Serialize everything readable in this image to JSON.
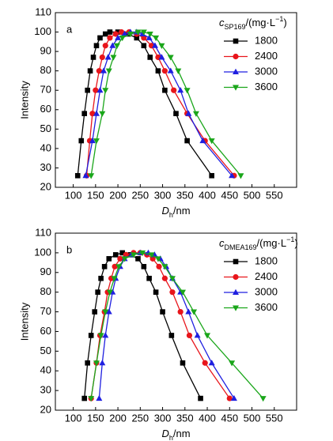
{
  "chart_data": [
    {
      "type": "line",
      "panel_label": "a",
      "y_label": "Intensity",
      "x_label": {
        "symbol": "D",
        "subscript": "h",
        "unit": "/nm"
      },
      "legend_title": {
        "symbol": "c",
        "subscript": "SP169",
        "unit": "/(mg·L",
        "superscript": "−1",
        "close": ")"
      },
      "xlim": [
        60,
        600
      ],
      "xticks": [
        100,
        150,
        200,
        250,
        300,
        350,
        400,
        450,
        500,
        550
      ],
      "ylim": [
        20,
        110
      ],
      "yticks": [
        20,
        30,
        40,
        50,
        60,
        70,
        80,
        90,
        100,
        110
      ],
      "series": [
        {
          "name": "1800",
          "color": "#000000",
          "marker": "square",
          "x": [
            110,
            118,
            125,
            132,
            138,
            145,
            152,
            160,
            172,
            182,
            200,
            222,
            242,
            258,
            272,
            290,
            305,
            330,
            355,
            410
          ],
          "values": [
            26,
            44,
            58,
            70,
            80,
            87,
            93,
            97,
            99,
            100,
            100,
            99,
            97,
            93,
            87,
            80,
            70,
            58,
            44,
            26
          ]
        },
        {
          "name": "2400",
          "color": "#e8151b",
          "marker": "circle",
          "x": [
            130,
            137,
            143,
            150,
            158,
            165,
            172,
            182,
            195,
            208,
            225,
            242,
            258,
            275,
            290,
            305,
            325,
            355,
            395,
            460
          ],
          "values": [
            26,
            44,
            58,
            70,
            80,
            87,
            93,
            97,
            99,
            100,
            100,
            99,
            97,
            93,
            87,
            80,
            70,
            58,
            44,
            26
          ]
        },
        {
          "name": "3000",
          "color": "#1f1fe0",
          "marker": "triangle-up",
          "x": [
            128,
            143,
            152,
            160,
            168,
            178,
            188,
            200,
            215,
            228,
            242,
            255,
            270,
            283,
            298,
            318,
            340,
            358,
            390,
            455
          ],
          "values": [
            26,
            44,
            58,
            70,
            80,
            87,
            93,
            97,
            99,
            100,
            100,
            99,
            97,
            93,
            87,
            80,
            70,
            58,
            44,
            26
          ]
        },
        {
          "name": "3600",
          "color": "#1aa61a",
          "marker": "triangle-down",
          "x": [
            140,
            152,
            165,
            172,
            180,
            190,
            198,
            210,
            228,
            245,
            258,
            272,
            285,
            298,
            318,
            335,
            355,
            375,
            410,
            475
          ],
          "values": [
            26,
            44,
            58,
            70,
            80,
            87,
            93,
            97,
            99,
            100,
            100,
            99,
            97,
            93,
            87,
            80,
            70,
            58,
            44,
            26
          ]
        }
      ]
    },
    {
      "type": "line",
      "panel_label": "b",
      "y_label": "Intensity",
      "x_label": {
        "symbol": "D",
        "subscript": "h",
        "unit": "/nm"
      },
      "legend_title": {
        "symbol": "c",
        "subscript": "DMEA169",
        "unit": "/(mg·L",
        "superscript": "−1",
        "close": ")"
      },
      "xlim": [
        60,
        600
      ],
      "xticks": [
        100,
        150,
        200,
        250,
        300,
        350,
        400,
        450,
        500,
        550
      ],
      "ylim": [
        20,
        110
      ],
      "yticks": [
        20,
        30,
        40,
        50,
        60,
        70,
        80,
        90,
        100,
        110
      ],
      "series": [
        {
          "name": "1800",
          "color": "#000000",
          "marker": "square",
          "x": [
            125,
            132,
            140,
            148,
            155,
            162,
            170,
            180,
            195,
            210,
            228,
            245,
            258,
            270,
            285,
            300,
            320,
            345,
            385
          ],
          "values": [
            26,
            44,
            58,
            70,
            80,
            87,
            93,
            97,
            99,
            100,
            99,
            97,
            93,
            87,
            80,
            70,
            58,
            44,
            26
          ]
        },
        {
          "name": "2400",
          "color": "#e8151b",
          "marker": "circle",
          "x": [
            140,
            152,
            160,
            170,
            177,
            185,
            193,
            205,
            218,
            235,
            250,
            265,
            278,
            292,
            305,
            322,
            340,
            360,
            395,
            450
          ],
          "values": [
            26,
            44,
            58,
            70,
            80,
            87,
            93,
            97,
            99,
            100,
            100,
            99,
            97,
            93,
            87,
            80,
            70,
            58,
            44,
            26
          ]
        },
        {
          "name": "3000",
          "color": "#1f1fe0",
          "marker": "triangle-up",
          "x": [
            158,
            165,
            172,
            180,
            188,
            195,
            205,
            215,
            230,
            250,
            268,
            282,
            295,
            308,
            322,
            340,
            358,
            378,
            410,
            460
          ],
          "values": [
            26,
            44,
            58,
            70,
            80,
            87,
            93,
            97,
            99,
            100,
            100,
            99,
            97,
            93,
            87,
            80,
            70,
            58,
            44,
            26
          ]
        },
        {
          "name": "3600",
          "color": "#1aa61a",
          "marker": "triangle-down",
          "x": [
            140,
            152,
            162,
            172,
            182,
            192,
            202,
            215,
            235,
            255,
            275,
            290,
            305,
            322,
            345,
            370,
            400,
            455,
            525
          ],
          "values": [
            26,
            44,
            58,
            70,
            80,
            87,
            93,
            97,
            99,
            100,
            99,
            97,
            93,
            87,
            80,
            70,
            58,
            44,
            26
          ]
        }
      ]
    }
  ]
}
